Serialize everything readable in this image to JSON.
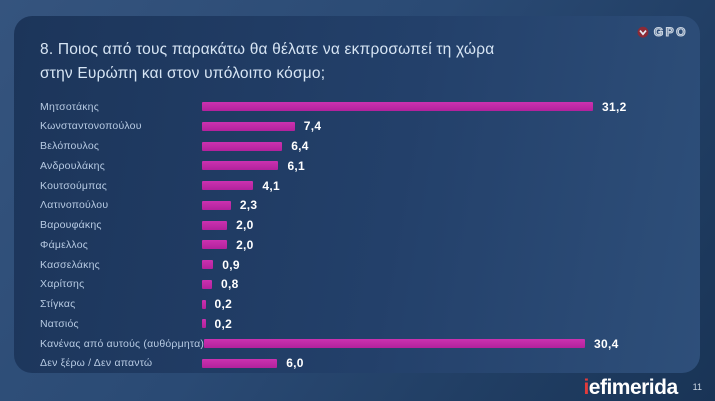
{
  "slide": {
    "title": "8. Ποιος από τους παρακάτω θα θέλατε να εκπροσωπεί τη χώρα στην Ευρώπη και στον υπόλοιπο κόσμο;",
    "page_number": "11"
  },
  "branding": {
    "gpo_label": "GPO",
    "iefimerida_first": "i",
    "iefimerida_rest": "efimerida"
  },
  "chart_data": {
    "type": "bar",
    "orientation": "horizontal",
    "title": "8. Ποιος από τους παρακάτω θα θέλατε να εκπροσωπεί τη χώρα στην Ευρώπη και στον υπόλοιπο κόσμο;",
    "categories": [
      "Μητσοτάκης",
      "Κωνσταντονοπούλου",
      "Βελόπουλος",
      "Ανδρουλάκης",
      "Κουτσούμπας",
      "Λατινοπούλου",
      "Βαρουφάκης",
      "Φάμελλος",
      "Κασσελάκης",
      "Χαρίτσης",
      "Στίγκας",
      "Νατσιός",
      "Κανένας από αυτούς (αυθόρμητα)",
      "Δεν ξέρω / Δεν απαντώ"
    ],
    "values": [
      31.2,
      7.4,
      6.4,
      6.1,
      4.1,
      2.3,
      2.0,
      2.0,
      0.9,
      0.8,
      0.2,
      0.2,
      30.4,
      6.0
    ],
    "value_labels": [
      "31,2",
      "7,4",
      "6,4",
      "6,1",
      "4,1",
      "2,3",
      "2,0",
      "2,0",
      "0,9",
      "0,8",
      "0,2",
      "0,2",
      "30,4",
      "6,0"
    ],
    "xlim": [
      0,
      33
    ],
    "grid": false,
    "legend": false,
    "data_labels": true
  },
  "colors": {
    "bar": "#bf28a6",
    "card_bg_left": "#1c355a",
    "card_bg_right": "#2e4f7a",
    "page_bg_light": "#35547e",
    "page_bg_dark": "#193456",
    "category_text": "#b8cbe3",
    "value_text": "#ffffff",
    "title_text": "#d7e5f4",
    "iefimerida_accent": "#e23b3b"
  }
}
